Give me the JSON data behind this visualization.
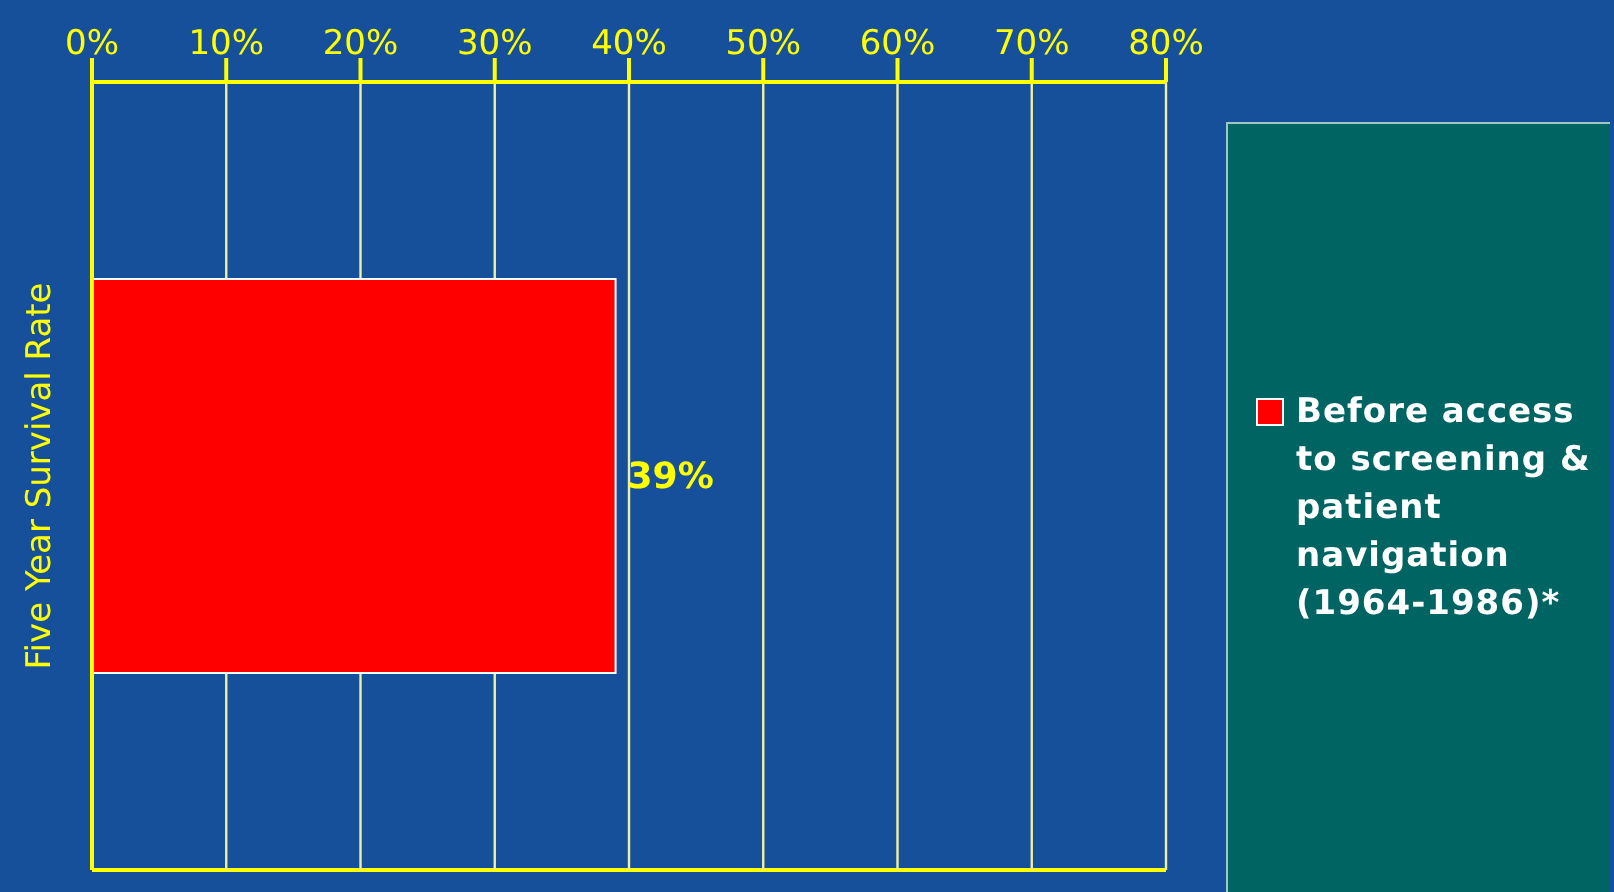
{
  "chart_data": {
    "type": "bar",
    "orientation": "horizontal",
    "ylabel": "Five Year Survival Rate",
    "categories": [
      null
    ],
    "series": [
      {
        "name": "Before access to screening & patient navigation (1964-1986)*",
        "color": "#ff0000",
        "values": [
          39
        ],
        "value_labels": [
          "39%"
        ]
      }
    ],
    "xlim": [
      0,
      80
    ],
    "xticks": [
      {
        "value": 0,
        "label": "0%"
      },
      {
        "value": 10,
        "label": "10%"
      },
      {
        "value": 20,
        "label": "20%"
      },
      {
        "value": 30,
        "label": "30%"
      },
      {
        "value": 40,
        "label": "40%"
      },
      {
        "value": 50,
        "label": "50%"
      },
      {
        "value": 60,
        "label": "60%"
      },
      {
        "value": 70,
        "label": "70%"
      },
      {
        "value": 80,
        "label": "80%"
      }
    ],
    "grid": "x",
    "legend": "right"
  }
}
